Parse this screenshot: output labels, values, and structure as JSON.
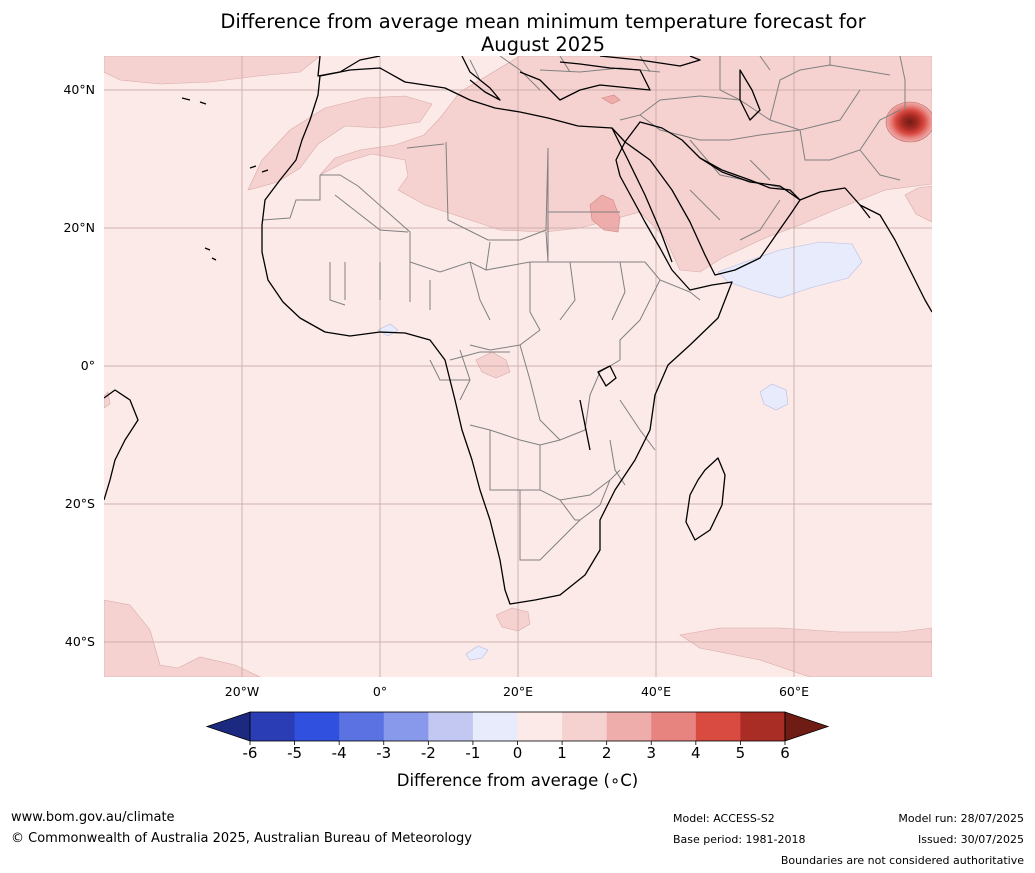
{
  "title": {
    "line1": "Difference from average mean minimum temperature forecast for",
    "line2": "August 2025"
  },
  "map": {
    "region": "Africa",
    "lat_ticks": [
      "40°N",
      "20°N",
      "0°",
      "20°S",
      "40°S"
    ],
    "lon_ticks": [
      "20°W",
      "0°",
      "20°E",
      "40°E",
      "60°E"
    ],
    "colors": {
      "ocean_base": "#fbeae8",
      "plus1_2": "#f5d2d0",
      "plus2_3": "#eeadaa",
      "plus3_4": "#e78480",
      "plus4_5": "#d94a41",
      "plus5_6": "#a92c25",
      "over6": "#6e1c14",
      "minus0_1": "#e8ebfb",
      "coast": "#000000",
      "borders": "#808080",
      "grid": "#c9a8a8"
    }
  },
  "colorbar": {
    "ticks": [
      "-6",
      "-5",
      "-4",
      "-3",
      "-2",
      "-1",
      "0",
      "1",
      "2",
      "3",
      "4",
      "5",
      "6"
    ],
    "colors": [
      "#1b2a80",
      "#2b3db4",
      "#3050e0",
      "#5a72e2",
      "#8898ea",
      "#c2c8f1",
      "#e8ebfb",
      "#fbeae8",
      "#f5d2d0",
      "#eeadaa",
      "#e78480",
      "#d94a41",
      "#a92c25",
      "#6e1c14"
    ],
    "label": "Difference from average (∘C)"
  },
  "footer": {
    "url": "www.bom.gov.au/climate",
    "copyright": "© Commonwealth of Australia 2025, Australian Bureau of Meteorology",
    "model": "Model: ACCESS-S2",
    "base_period": "Base period: 1981-2018",
    "model_run": "Model run: 28/07/2025",
    "issued": "Issued: 30/07/2025",
    "disclaimer": "Boundaries are not considered authoritative"
  }
}
